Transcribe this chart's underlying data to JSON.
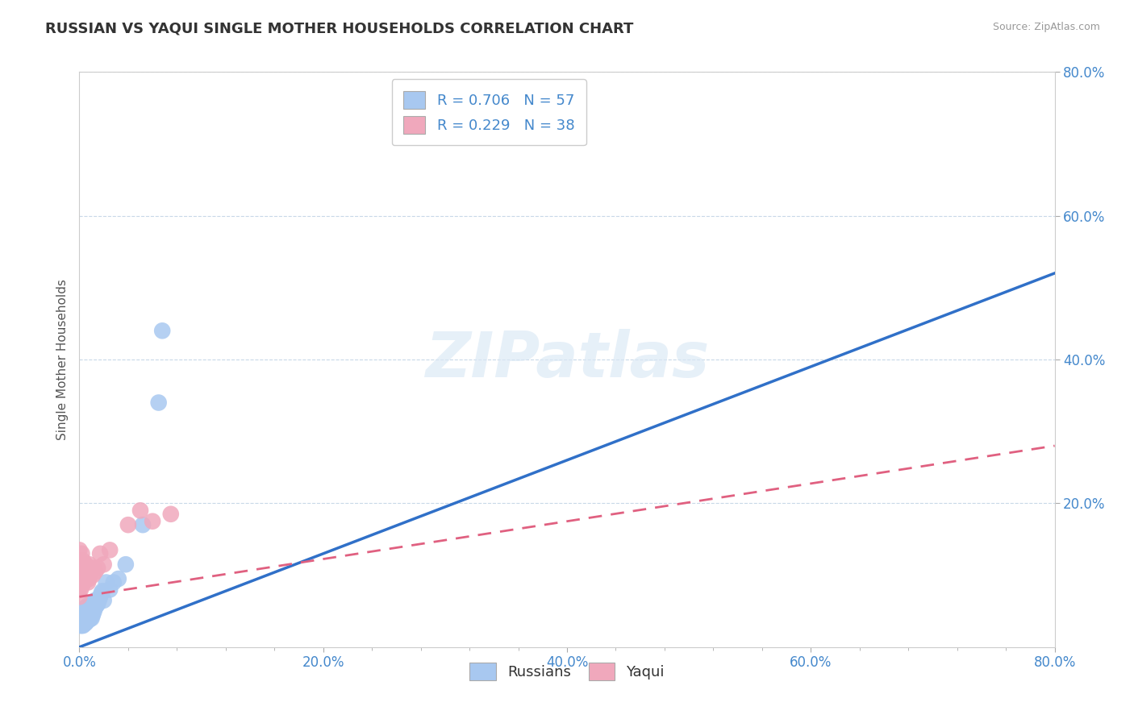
{
  "title": "RUSSIAN VS YAQUI SINGLE MOTHER HOUSEHOLDS CORRELATION CHART",
  "source": "Source: ZipAtlas.com",
  "ylabel": "Single Mother Households",
  "xlim": [
    0.0,
    0.8
  ],
  "ylim": [
    0.0,
    0.8
  ],
  "xtick_labels": [
    "0.0%",
    "",
    "",
    "",
    "",
    "20.0%",
    "",
    "",
    "",
    "",
    "40.0%",
    "",
    "",
    "",
    "",
    "60.0%",
    "",
    "",
    "",
    "",
    "80.0%"
  ],
  "xtick_vals": [
    0.0,
    0.04,
    0.08,
    0.12,
    0.16,
    0.2,
    0.24,
    0.28,
    0.32,
    0.36,
    0.4,
    0.44,
    0.48,
    0.52,
    0.56,
    0.6,
    0.64,
    0.68,
    0.72,
    0.76,
    0.8
  ],
  "ytick_labels": [
    "20.0%",
    "40.0%",
    "60.0%",
    "80.0%"
  ],
  "ytick_vals": [
    0.2,
    0.4,
    0.6,
    0.8
  ],
  "legend_r1": "R = 0.706   N = 57",
  "legend_r2": "R = 0.229   N = 38",
  "russian_color": "#a8c8f0",
  "yaqui_color": "#f0a8bc",
  "russian_line_color": "#3070c8",
  "yaqui_line_color": "#e06080",
  "background_color": "#ffffff",
  "grid_color": "#c8d8e8",
  "russians_x": [
    0.001,
    0.001,
    0.001,
    0.002,
    0.002,
    0.002,
    0.002,
    0.002,
    0.003,
    0.003,
    0.003,
    0.003,
    0.003,
    0.004,
    0.004,
    0.004,
    0.004,
    0.005,
    0.005,
    0.005,
    0.005,
    0.005,
    0.006,
    0.006,
    0.006,
    0.007,
    0.007,
    0.007,
    0.007,
    0.008,
    0.008,
    0.008,
    0.009,
    0.009,
    0.01,
    0.01,
    0.01,
    0.011,
    0.011,
    0.012,
    0.013,
    0.013,
    0.014,
    0.015,
    0.016,
    0.017,
    0.018,
    0.019,
    0.02,
    0.022,
    0.025,
    0.028,
    0.032,
    0.038,
    0.052,
    0.065,
    0.068
  ],
  "russians_y": [
    0.03,
    0.035,
    0.04,
    0.03,
    0.035,
    0.038,
    0.042,
    0.045,
    0.03,
    0.035,
    0.04,
    0.045,
    0.048,
    0.032,
    0.038,
    0.042,
    0.05,
    0.033,
    0.038,
    0.043,
    0.047,
    0.055,
    0.035,
    0.04,
    0.05,
    0.037,
    0.042,
    0.048,
    0.058,
    0.038,
    0.045,
    0.052,
    0.04,
    0.048,
    0.04,
    0.05,
    0.06,
    0.045,
    0.055,
    0.05,
    0.055,
    0.065,
    0.058,
    0.06,
    0.065,
    0.07,
    0.075,
    0.078,
    0.065,
    0.09,
    0.08,
    0.09,
    0.095,
    0.115,
    0.17,
    0.34,
    0.44
  ],
  "yaqui_x": [
    0.0,
    0.0,
    0.0,
    0.0,
    0.0,
    0.001,
    0.001,
    0.001,
    0.001,
    0.002,
    0.002,
    0.002,
    0.002,
    0.003,
    0.003,
    0.003,
    0.004,
    0.004,
    0.005,
    0.005,
    0.006,
    0.007,
    0.007,
    0.008,
    0.008,
    0.009,
    0.01,
    0.011,
    0.012,
    0.013,
    0.015,
    0.017,
    0.02,
    0.025,
    0.04,
    0.05,
    0.06,
    0.075
  ],
  "yaqui_y": [
    0.07,
    0.09,
    0.1,
    0.115,
    0.135,
    0.08,
    0.09,
    0.1,
    0.115,
    0.085,
    0.095,
    0.11,
    0.13,
    0.088,
    0.1,
    0.12,
    0.092,
    0.11,
    0.095,
    0.115,
    0.1,
    0.09,
    0.11,
    0.095,
    0.115,
    0.1,
    0.105,
    0.1,
    0.11,
    0.105,
    0.11,
    0.13,
    0.115,
    0.135,
    0.17,
    0.19,
    0.175,
    0.185
  ],
  "russian_trend_x": [
    0.0,
    0.8
  ],
  "russian_trend_y": [
    0.0,
    0.52
  ],
  "yaqui_trend_x": [
    0.0,
    0.8
  ],
  "yaqui_trend_y": [
    0.07,
    0.28
  ]
}
